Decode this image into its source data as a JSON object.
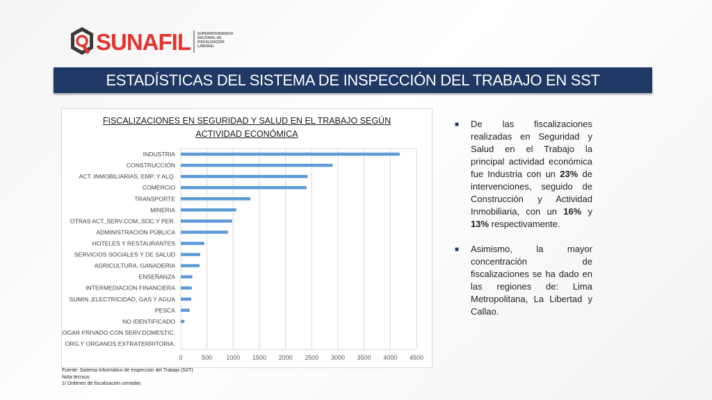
{
  "logo": {
    "wordmark": "SUNAFIL",
    "subtext": "SUPERINTENDENCIA NACIONAL DE FISCALIZACIÓN LABORAL"
  },
  "header": {
    "title": "ESTADÍSTICAS DEL SISTEMA DE INSPECCIÓN DEL TRABAJO EN SST"
  },
  "chart_data": {
    "type": "bar",
    "orientation": "horizontal",
    "title_line1": "FISCALIZACIONES EN SEGURIDAD Y SALUD EN EL TRABAJO SEGÚN",
    "title_line2": "ACTIVIDAD ECONÓMICA",
    "categories": [
      "INDUSTRIA",
      "CONSTRUCCIÓN",
      "ACT. INMOBILIARIAS, EMP. Y ALQ.",
      "COMERCIO",
      "TRANSPORTE",
      "MINERIA",
      "OTRAS ACT.,SERV.COM.,SOC.Y PER.",
      "ADMINISTRACIÓN PÚBLICA",
      "HOTELES Y RESTAURANTES",
      "SERVICIOS SOCIALES Y DE SALUD",
      "AGRICULTURA, GANADERIA",
      "ENSEÑANZA",
      "INTERMEDIACIÓN FINANCIERA",
      "SUMIN.,ELECTRICIDAD, GAS Y AGUA",
      "PESCA",
      "NO IDENTIFICADO",
      "HOGAR PRIVADO CON SERV.DOMESTIC.",
      "ORG.Y ORGANOS EXTRATERRITORIA."
    ],
    "values": [
      4180,
      2900,
      2420,
      2400,
      1330,
      1060,
      980,
      900,
      450,
      370,
      360,
      220,
      210,
      200,
      170,
      70,
      0,
      0
    ],
    "xlim": [
      0,
      4500
    ],
    "xticks": [
      "0",
      "500",
      "1000",
      "1500",
      "2000",
      "2500",
      "3000",
      "3500",
      "4000",
      "4500"
    ],
    "grid": true,
    "bar_color": "#5b9bd5",
    "legend": "none"
  },
  "footnotes": {
    "source": "Fuente: Sistema Informático de Inspección del Trabajo (SIIT)",
    "note_label": "Nota técnica:",
    "note_1": "1/ Ordenes de fiscalización cerradas"
  },
  "bullets": {
    "b1_a": "De las fiscalizaciones realizadas en Seguridad y Salud en el Trabajo la principal actividad económica fue Industria con un ",
    "b1_pct1": "23%",
    "b1_b": " de intervenciones, seguido de Construcción y Actividad Inmobiliaria, con un ",
    "b1_pct2": "16%",
    "b1_c": " y ",
    "b1_pct3": "13%",
    "b1_d": " respectivamente.",
    "b2": "Asimismo, la mayor concentración de fiscalizaciones se ha dado en las regiones de: Lima Metropolitana, La Libertad y Callao."
  }
}
